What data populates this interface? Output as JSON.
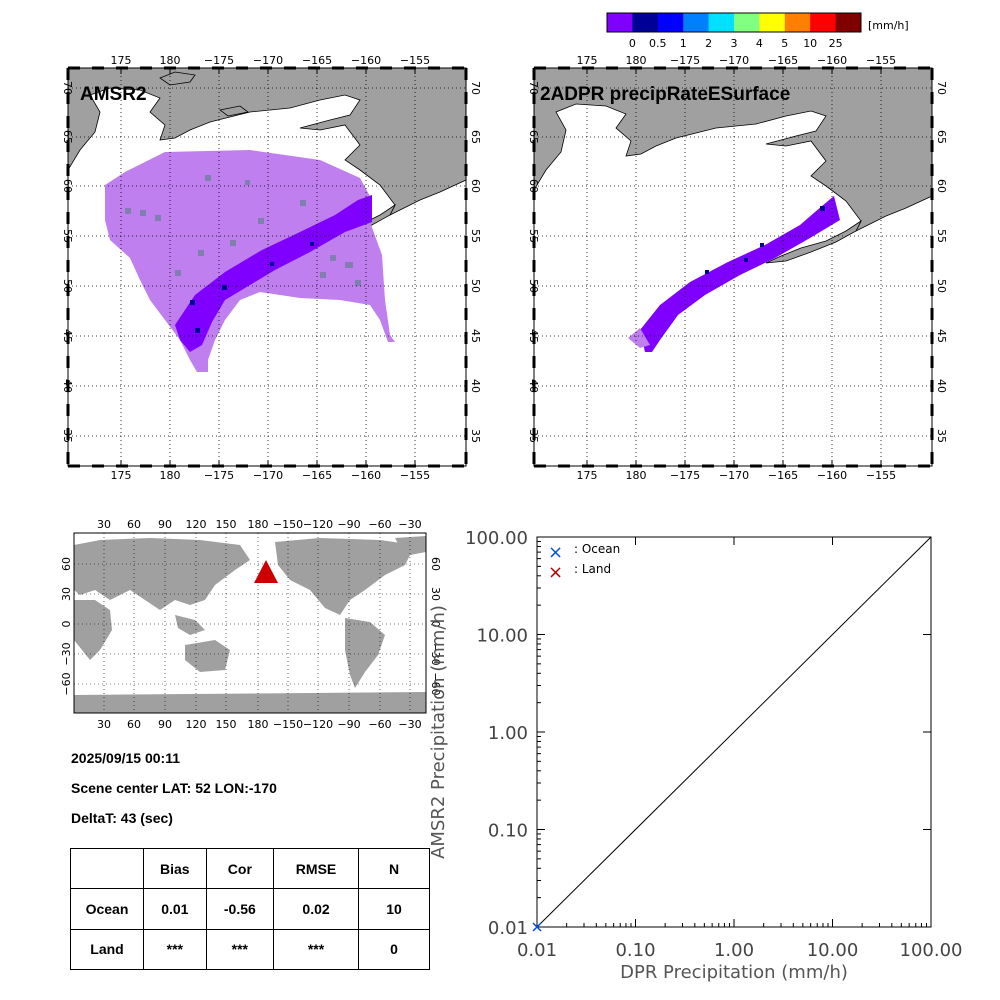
{
  "colorbar": {
    "unit": "[mm/h]",
    "labels": [
      "0",
      "0.5",
      "1",
      "2",
      "3",
      "4",
      "5",
      "10",
      "25"
    ],
    "colors": [
      "#7f00ff",
      "#000096",
      "#0000ff",
      "#0080ff",
      "#00e0ff",
      "#80ff80",
      "#ffff00",
      "#ff8000",
      "#ff0000",
      "#800000"
    ]
  },
  "map_left": {
    "title": "AMSR2",
    "lon_ticks": [
      "175",
      "180",
      "−175",
      "−170",
      "−165",
      "−160",
      "−155"
    ],
    "lat_ticks": [
      "70",
      "65",
      "60",
      "55",
      "50",
      "45",
      "40",
      "35"
    ]
  },
  "map_right": {
    "title": "2ADPR precipRateESurface",
    "lon_ticks": [
      "175",
      "180",
      "−175",
      "−170",
      "−165",
      "−160",
      "−155"
    ],
    "lat_ticks": [
      "70",
      "65",
      "60",
      "55",
      "50",
      "45",
      "40",
      "35"
    ]
  },
  "world_map": {
    "top_ticks": [
      "30",
      "60",
      "90",
      "120",
      "150",
      "180",
      "−150",
      "−120",
      "−90",
      "−60",
      "−30"
    ],
    "bottom_ticks": [
      "30",
      "60",
      "90",
      "120",
      "150",
      "180",
      "−150",
      "−120",
      "−90",
      "−60",
      "−30"
    ],
    "left_ticks": [
      "60",
      "30",
      "0",
      "−30",
      "−60"
    ],
    "right_ticks": [
      "60",
      "30",
      "0",
      "−30",
      "−60"
    ],
    "marker_color": "#cc0000"
  },
  "info": {
    "datetime": "2025/09/15 00:11",
    "scene_center": "Scene center LAT: 52   LON:-170",
    "delta": "DeltaT:   43 (sec)"
  },
  "stats": {
    "headers": [
      "",
      "Bias",
      "Cor",
      "RMSE",
      "N"
    ],
    "rows": [
      [
        "Ocean",
        "0.01",
        "-0.56",
        "0.02",
        "10"
      ],
      [
        "Land",
        "***",
        "***",
        "***",
        "0"
      ]
    ]
  },
  "chart_data": {
    "type": "scatter",
    "xlabel": "DPR Precipitation (mm/h)",
    "ylabel": "AMSR2 Precipitation (mm/h)",
    "xscale": "log",
    "yscale": "log",
    "xlim": [
      0.01,
      100
    ],
    "ylim": [
      0.01,
      100
    ],
    "x_tick_labels": [
      "0.01",
      "0.10",
      "1.00",
      "10.00",
      "100.00"
    ],
    "y_tick_labels": [
      "0.01",
      "0.10",
      "1.00",
      "10.00",
      "100.00"
    ],
    "x_tick_values": [
      0.01,
      0.1,
      1,
      10,
      100
    ],
    "y_tick_values": [
      0.01,
      0.1,
      1,
      10,
      100
    ],
    "legend": [
      {
        "symbol": "×",
        "label": ": Ocean",
        "color": "#0050dc"
      },
      {
        "symbol": "×",
        "label": ": Land",
        "color": "#b40000"
      }
    ],
    "reference_line": "y = x",
    "series": [
      {
        "name": "Ocean",
        "color": "#0050dc",
        "points": [
          [
            0.01,
            0.01
          ]
        ]
      },
      {
        "name": "Land",
        "color": "#b40000",
        "points": []
      }
    ]
  }
}
